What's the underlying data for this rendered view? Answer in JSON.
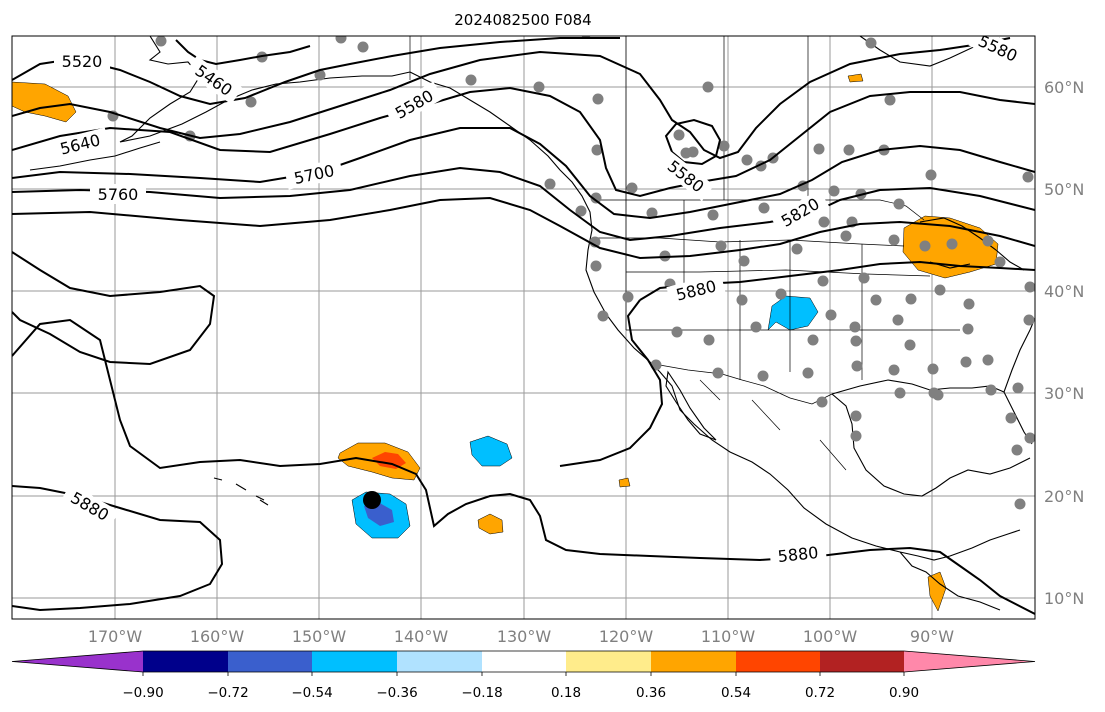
{
  "title": "2024082500 F084",
  "map": {
    "lon_ticks": [
      "170°W",
      "160°W",
      "150°W",
      "140°W",
      "130°W",
      "120°W",
      "110°W",
      "100°W",
      "90°W"
    ],
    "lat_ticks": [
      "60°N",
      "50°N",
      "40°N",
      "30°N",
      "20°N",
      "10°N"
    ],
    "contour_labels": [
      "5520",
      "5460",
      "5580",
      "5640",
      "5700",
      "5760",
      "5580",
      "5820",
      "5880",
      "5880",
      "5880",
      "5580"
    ],
    "colors": {
      "grid": "#9a9a9a",
      "station": "#808080",
      "contour": "#000000"
    }
  },
  "colorbar": {
    "labels": [
      "−0.90",
      "−0.72",
      "−0.54",
      "−0.36",
      "−0.18",
      "0.18",
      "0.36",
      "0.54",
      "0.72",
      "0.90"
    ],
    "colors": [
      "#9932CC",
      "#00008B",
      "#3A5FCD",
      "#00BFFF",
      "#B0E2FF",
      "#FFFFFF",
      "#FFEC8B",
      "#FFA500",
      "#FF4500",
      "#B22222",
      "#FF88AA"
    ]
  }
}
